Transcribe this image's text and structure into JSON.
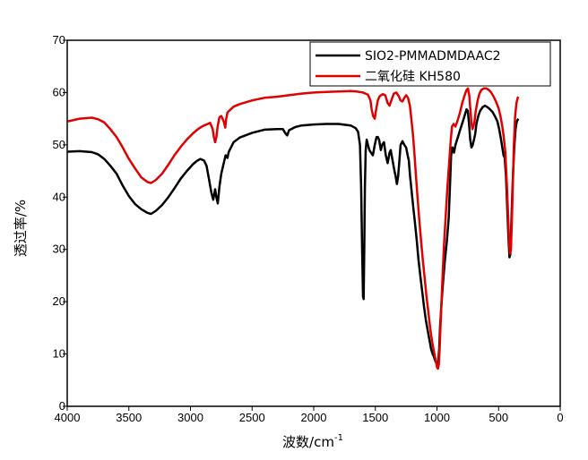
{
  "chart_data": {
    "type": "line",
    "xlabel": "波数/cm",
    "xlabel_sup": "-1",
    "ylabel": "透过率/%",
    "xlim": [
      4000,
      0
    ],
    "ylim": [
      0,
      70
    ],
    "x_ticks": [
      4000,
      3500,
      3000,
      2500,
      2000,
      1500,
      1000,
      500,
      0
    ],
    "y_ticks": [
      0,
      10,
      20,
      30,
      40,
      50,
      60,
      70
    ],
    "legend_position": "top-right",
    "grid": false,
    "series": [
      {
        "name": "SIO2-PMMADMDAAC2",
        "color": "#000000",
        "points": [
          [
            3995,
            48.7
          ],
          [
            3900,
            48.8
          ],
          [
            3800,
            48.6
          ],
          [
            3750,
            48.2
          ],
          [
            3700,
            47.3
          ],
          [
            3650,
            46.0
          ],
          [
            3600,
            44.5
          ],
          [
            3550,
            42.2
          ],
          [
            3500,
            40.2
          ],
          [
            3450,
            38.7
          ],
          [
            3400,
            37.7
          ],
          [
            3350,
            37.0
          ],
          [
            3320,
            36.8
          ],
          [
            3280,
            37.4
          ],
          [
            3230,
            38.5
          ],
          [
            3180,
            40.0
          ],
          [
            3130,
            41.7
          ],
          [
            3080,
            43.5
          ],
          [
            3030,
            45.0
          ],
          [
            2980,
            46.3
          ],
          [
            2950,
            46.9
          ],
          [
            2920,
            47.3
          ],
          [
            2890,
            47.0
          ],
          [
            2870,
            46.0
          ],
          [
            2850,
            43.5
          ],
          [
            2830,
            40.8
          ],
          [
            2815,
            39.5
          ],
          [
            2800,
            41.5
          ],
          [
            2790,
            40.0
          ],
          [
            2778,
            38.8
          ],
          [
            2765,
            42.0
          ],
          [
            2750,
            44.5
          ],
          [
            2730,
            46.5
          ],
          [
            2715,
            48.0
          ],
          [
            2700,
            47.5
          ],
          [
            2690,
            48.6
          ],
          [
            2650,
            50.5
          ],
          [
            2600,
            51.4
          ],
          [
            2500,
            52.3
          ],
          [
            2400,
            52.9
          ],
          [
            2300,
            53.0
          ],
          [
            2250,
            53.0
          ],
          [
            2230,
            52.2
          ],
          [
            2215,
            51.8
          ],
          [
            2200,
            52.8
          ],
          [
            2150,
            53.4
          ],
          [
            2100,
            53.7
          ],
          [
            2000,
            53.9
          ],
          [
            1900,
            54.0
          ],
          [
            1800,
            54.0
          ],
          [
            1700,
            53.7
          ],
          [
            1660,
            53.2
          ],
          [
            1640,
            52.5
          ],
          [
            1625,
            50.0
          ],
          [
            1615,
            42.0
          ],
          [
            1607,
            30.0
          ],
          [
            1600,
            21.0
          ],
          [
            1595,
            20.5
          ],
          [
            1590,
            30.0
          ],
          [
            1585,
            42.0
          ],
          [
            1578,
            49.0
          ],
          [
            1570,
            51.0
          ],
          [
            1560,
            50.0
          ],
          [
            1548,
            49.0
          ],
          [
            1535,
            48.5
          ],
          [
            1520,
            48.0
          ],
          [
            1505,
            50.0
          ],
          [
            1490,
            51.5
          ],
          [
            1480,
            51.5
          ],
          [
            1470,
            51.0
          ],
          [
            1455,
            49.0
          ],
          [
            1445,
            50.0
          ],
          [
            1430,
            50.5
          ],
          [
            1415,
            48.0
          ],
          [
            1400,
            46.5
          ],
          [
            1385,
            48.5
          ],
          [
            1375,
            49.0
          ],
          [
            1360,
            47.0
          ],
          [
            1345,
            45.0
          ],
          [
            1335,
            44.0
          ],
          [
            1325,
            42.5
          ],
          [
            1315,
            44.0
          ],
          [
            1305,
            47.0
          ],
          [
            1295,
            50.0
          ],
          [
            1280,
            50.7
          ],
          [
            1265,
            50.0
          ],
          [
            1250,
            49.5
          ],
          [
            1238,
            48.0
          ],
          [
            1228,
            47.0
          ],
          [
            1218,
            44.0
          ],
          [
            1205,
            41.0
          ],
          [
            1192,
            38.0
          ],
          [
            1178,
            35.0
          ],
          [
            1165,
            32.0
          ],
          [
            1150,
            28.0
          ],
          [
            1135,
            25.0
          ],
          [
            1120,
            22.0
          ],
          [
            1105,
            19.0
          ],
          [
            1090,
            16.5
          ],
          [
            1075,
            14.5
          ],
          [
            1060,
            12.5
          ],
          [
            1048,
            11.0
          ],
          [
            1035,
            10.0
          ],
          [
            1025,
            9.5
          ],
          [
            1018,
            9.0
          ],
          [
            1010,
            8.5
          ],
          [
            1000,
            8.0
          ],
          [
            990,
            8.5
          ],
          [
            982,
            11.0
          ],
          [
            975,
            15.0
          ],
          [
            962,
            20.0
          ],
          [
            950,
            24.0
          ],
          [
            935,
            28.0
          ],
          [
            920,
            31.5
          ],
          [
            905,
            36.0
          ],
          [
            893,
            43.0
          ],
          [
            885,
            48.0
          ],
          [
            875,
            49.5
          ],
          [
            862,
            48.5
          ],
          [
            850,
            50.0
          ],
          [
            830,
            51.5
          ],
          [
            810,
            53.0
          ],
          [
            790,
            54.5
          ],
          [
            770,
            56.0
          ],
          [
            760,
            56.8
          ],
          [
            750,
            56.5
          ],
          [
            740,
            54.0
          ],
          [
            730,
            51.0
          ],
          [
            720,
            49.5
          ],
          [
            710,
            50.0
          ],
          [
            700,
            51.0
          ],
          [
            690,
            52.0
          ],
          [
            680,
            54.0
          ],
          [
            665,
            55.5
          ],
          [
            650,
            56.5
          ],
          [
            630,
            57.2
          ],
          [
            610,
            57.5
          ],
          [
            590,
            57.2
          ],
          [
            570,
            56.8
          ],
          [
            550,
            56.3
          ],
          [
            530,
            55.5
          ],
          [
            510,
            54.5
          ],
          [
            495,
            53.0
          ],
          [
            480,
            51.0
          ],
          [
            470,
            49.5
          ],
          [
            460,
            48.0
          ],
          [
            450,
            47.5
          ],
          [
            440,
            44.0
          ],
          [
            430,
            38.0
          ],
          [
            420,
            32.0
          ],
          [
            412,
            28.5
          ],
          [
            405,
            29.0
          ],
          [
            398,
            34.0
          ],
          [
            390,
            40.0
          ],
          [
            382,
            45.0
          ],
          [
            372,
            50.0
          ],
          [
            362,
            53.0
          ],
          [
            352,
            54.5
          ],
          [
            340,
            55.0
          ]
        ]
      },
      {
        "name": "二氧化硅 KH580",
        "color": "#e00000",
        "points": [
          [
            3995,
            54.5
          ],
          [
            3900,
            55.0
          ],
          [
            3800,
            55.2
          ],
          [
            3750,
            54.9
          ],
          [
            3700,
            54.3
          ],
          [
            3650,
            53.0
          ],
          [
            3600,
            51.5
          ],
          [
            3550,
            49.5
          ],
          [
            3500,
            47.3
          ],
          [
            3450,
            45.5
          ],
          [
            3400,
            43.8
          ],
          [
            3350,
            42.9
          ],
          [
            3320,
            42.7
          ],
          [
            3280,
            43.3
          ],
          [
            3230,
            44.5
          ],
          [
            3180,
            46.2
          ],
          [
            3130,
            48.0
          ],
          [
            3080,
            49.6
          ],
          [
            3030,
            51.0
          ],
          [
            2980,
            52.2
          ],
          [
            2940,
            53.0
          ],
          [
            2900,
            53.6
          ],
          [
            2860,
            54.0
          ],
          [
            2840,
            54.2
          ],
          [
            2820,
            53.0
          ],
          [
            2810,
            51.5
          ],
          [
            2800,
            50.5
          ],
          [
            2790,
            51.5
          ],
          [
            2780,
            53.5
          ],
          [
            2765,
            55.3
          ],
          [
            2750,
            55.5
          ],
          [
            2730,
            54.5
          ],
          [
            2718,
            53.3
          ],
          [
            2710,
            55.0
          ],
          [
            2700,
            56.2
          ],
          [
            2650,
            57.3
          ],
          [
            2600,
            57.8
          ],
          [
            2500,
            58.5
          ],
          [
            2400,
            59.0
          ],
          [
            2300,
            59.2
          ],
          [
            2200,
            59.5
          ],
          [
            2100,
            59.8
          ],
          [
            2000,
            60.0
          ],
          [
            1900,
            60.1
          ],
          [
            1800,
            60.2
          ],
          [
            1700,
            60.3
          ],
          [
            1650,
            60.2
          ],
          [
            1600,
            60.0
          ],
          [
            1560,
            59.6
          ],
          [
            1540,
            58.5
          ],
          [
            1530,
            56.8
          ],
          [
            1518,
            55.5
          ],
          [
            1505,
            55.0
          ],
          [
            1495,
            56.5
          ],
          [
            1480,
            58.5
          ],
          [
            1465,
            59.3
          ],
          [
            1440,
            59.7
          ],
          [
            1420,
            59.5
          ],
          [
            1400,
            58.0
          ],
          [
            1385,
            57.5
          ],
          [
            1370,
            58.5
          ],
          [
            1350,
            59.8
          ],
          [
            1330,
            60.0
          ],
          [
            1310,
            59.3
          ],
          [
            1295,
            58.5
          ],
          [
            1280,
            58.3
          ],
          [
            1265,
            59.0
          ],
          [
            1250,
            59.5
          ],
          [
            1235,
            59.0
          ],
          [
            1220,
            57.5
          ],
          [
            1208,
            55.0
          ],
          [
            1195,
            52.0
          ],
          [
            1182,
            48.0
          ],
          [
            1170,
            44.0
          ],
          [
            1158,
            40.0
          ],
          [
            1145,
            36.0
          ],
          [
            1130,
            32.0
          ],
          [
            1115,
            28.0
          ],
          [
            1100,
            24.5
          ],
          [
            1085,
            21.0
          ],
          [
            1070,
            18.0
          ],
          [
            1055,
            15.0
          ],
          [
            1040,
            12.5
          ],
          [
            1025,
            10.5
          ],
          [
            1012,
            9.0
          ],
          [
            1000,
            7.5
          ],
          [
            992,
            7.2
          ],
          [
            985,
            8.0
          ],
          [
            978,
            11.0
          ],
          [
            970,
            16.0
          ],
          [
            958,
            23.0
          ],
          [
            945,
            30.0
          ],
          [
            930,
            36.0
          ],
          [
            915,
            42.0
          ],
          [
            900,
            47.0
          ],
          [
            888,
            51.0
          ],
          [
            878,
            53.5
          ],
          [
            865,
            54.0
          ],
          [
            850,
            53.5
          ],
          [
            835,
            54.5
          ],
          [
            815,
            56.0
          ],
          [
            795,
            58.0
          ],
          [
            775,
            59.5
          ],
          [
            760,
            60.5
          ],
          [
            748,
            60.8
          ],
          [
            738,
            59.5
          ],
          [
            728,
            56.5
          ],
          [
            720,
            54.0
          ],
          [
            712,
            53.0
          ],
          [
            705,
            53.5
          ],
          [
            695,
            54.5
          ],
          [
            685,
            56.5
          ],
          [
            670,
            58.5
          ],
          [
            655,
            59.8
          ],
          [
            640,
            60.5
          ],
          [
            620,
            60.8
          ],
          [
            600,
            60.8
          ],
          [
            580,
            60.5
          ],
          [
            560,
            60.0
          ],
          [
            540,
            59.2
          ],
          [
            520,
            58.2
          ],
          [
            500,
            57.0
          ],
          [
            485,
            55.5
          ],
          [
            470,
            53.5
          ],
          [
            458,
            51.5
          ],
          [
            445,
            48.5
          ],
          [
            432,
            42.0
          ],
          [
            422,
            36.0
          ],
          [
            414,
            31.0
          ],
          [
            407,
            29.2
          ],
          [
            400,
            30.0
          ],
          [
            393,
            35.0
          ],
          [
            385,
            42.0
          ],
          [
            376,
            50.0
          ],
          [
            366,
            55.5
          ],
          [
            355,
            58.0
          ],
          [
            345,
            59.0
          ],
          [
            340,
            59.2
          ]
        ]
      }
    ]
  }
}
